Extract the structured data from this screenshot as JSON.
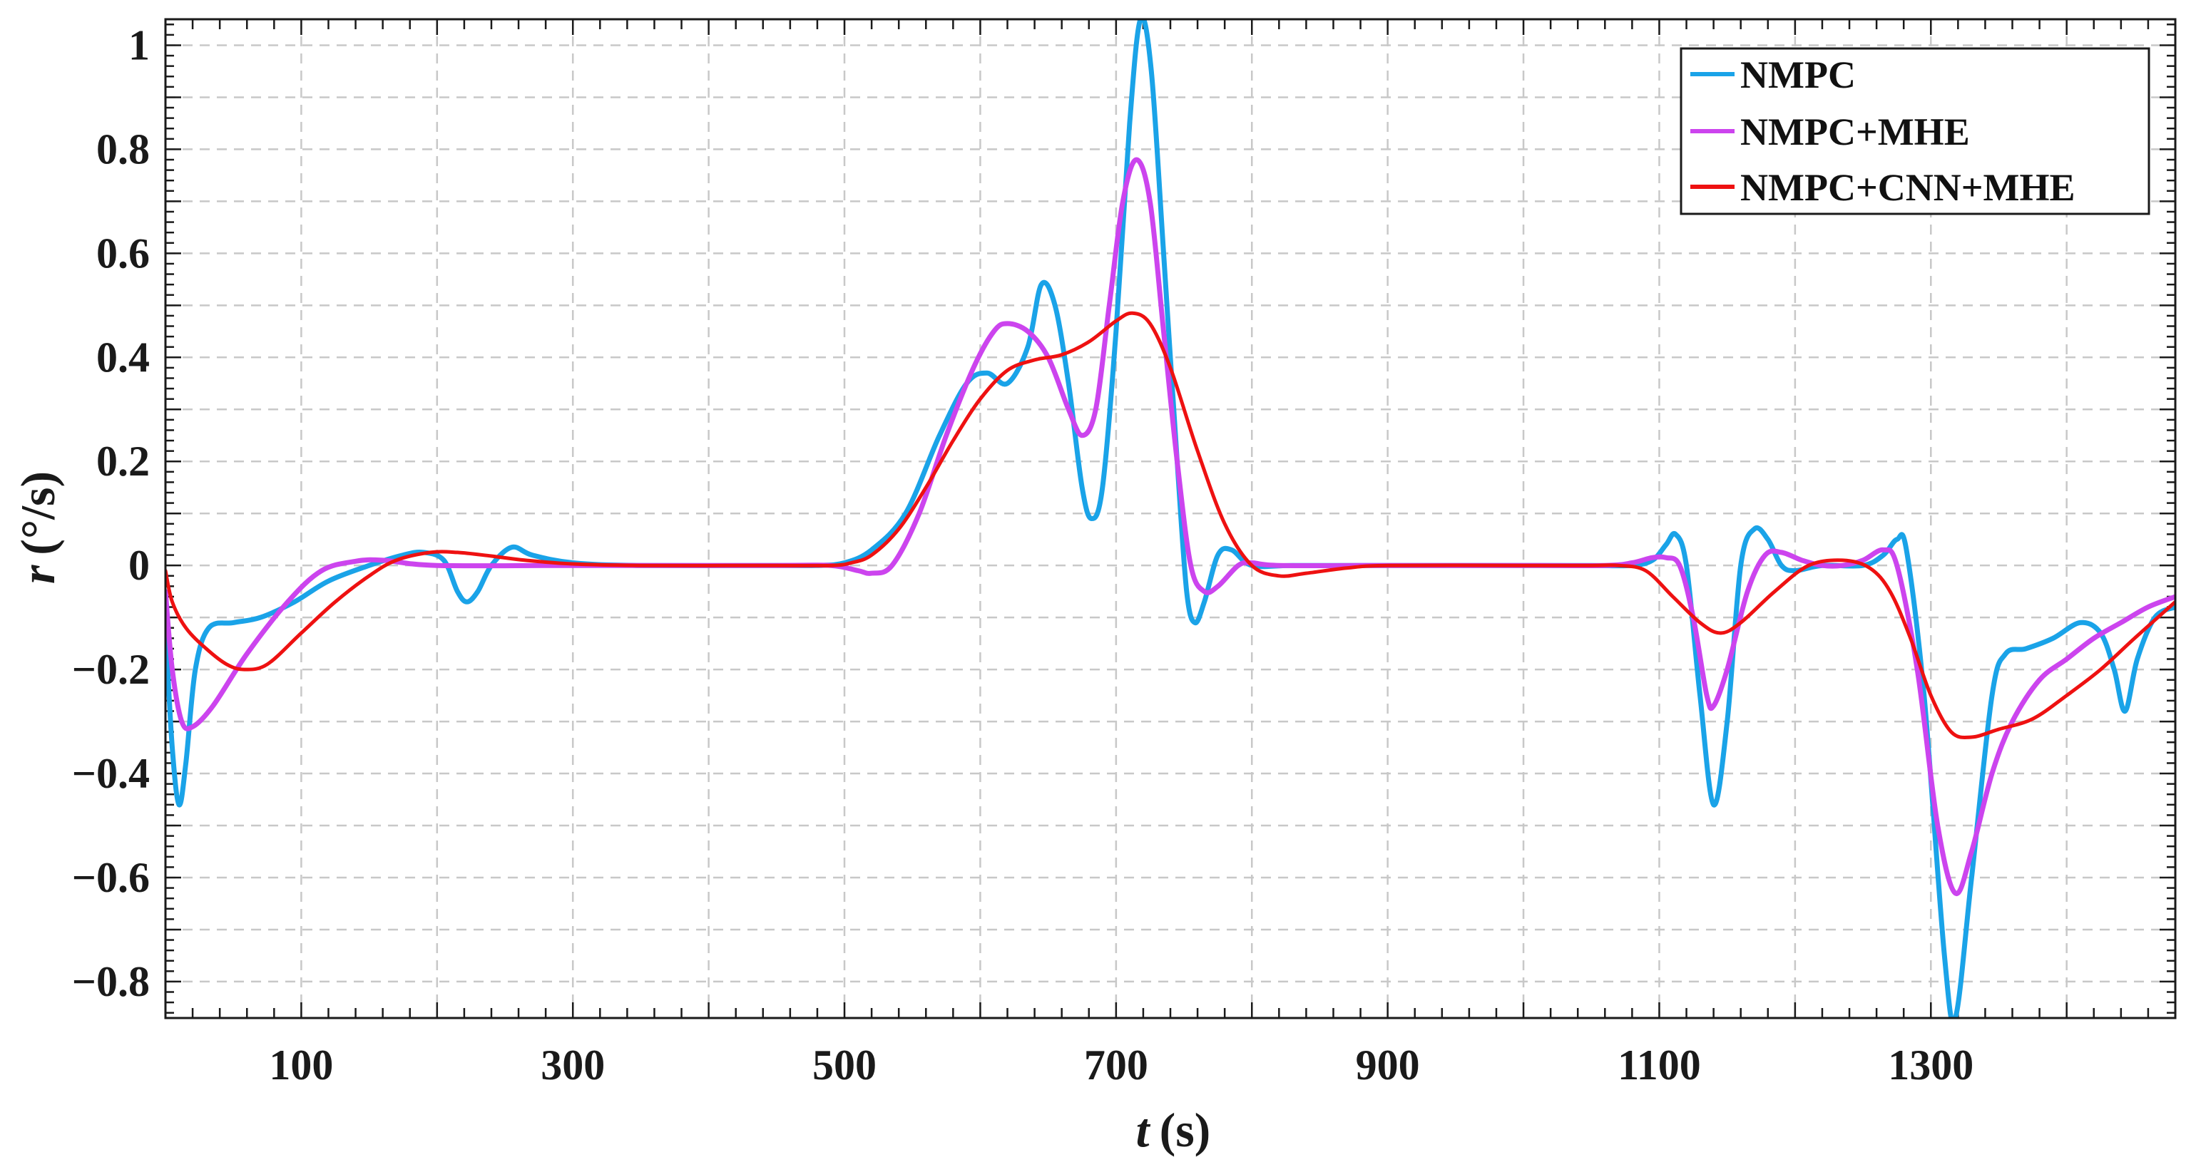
{
  "chart_data": {
    "type": "line",
    "title": "",
    "xlabel": "t",
    "xlabel_unit": "(s)",
    "ylabel": "r",
    "ylabel_unit": "(°/s)",
    "xlim": [
      0,
      1480
    ],
    "ylim": [
      -0.87,
      1.05
    ],
    "xticks": [
      100,
      300,
      500,
      700,
      900,
      1100,
      1300
    ],
    "xtick_labels": [
      "100",
      "300",
      "500",
      "700",
      "900",
      "1100",
      "1300"
    ],
    "yticks": [
      1,
      0.8,
      0.6,
      0.4,
      0.2,
      0,
      -0.2,
      -0.4,
      -0.6,
      -0.8
    ],
    "ytick_labels": [
      "1",
      "0.8",
      "0.6",
      "0.4",
      "0.2",
      "0",
      "−0.2",
      "−0.4",
      "−0.6",
      "−0.8"
    ],
    "grid": true,
    "legend_position": "top-right",
    "series": [
      {
        "name": "NMPC",
        "color": "#1aa3e8",
        "points": [
          [
            0,
            -0.12
          ],
          [
            5,
            -0.35
          ],
          [
            10,
            -0.46
          ],
          [
            15,
            -0.38
          ],
          [
            22,
            -0.2
          ],
          [
            32,
            -0.12
          ],
          [
            50,
            -0.11
          ],
          [
            70,
            -0.1
          ],
          [
            95,
            -0.07
          ],
          [
            120,
            -0.03
          ],
          [
            150,
            0.0
          ],
          [
            175,
            0.02
          ],
          [
            190,
            0.025
          ],
          [
            205,
            0.01
          ],
          [
            215,
            -0.05
          ],
          [
            222,
            -0.07
          ],
          [
            230,
            -0.05
          ],
          [
            240,
            0.0
          ],
          [
            255,
            0.035
          ],
          [
            270,
            0.02
          ],
          [
            300,
            0.005
          ],
          [
            350,
            0.0
          ],
          [
            450,
            0.0
          ],
          [
            480,
            0.0
          ],
          [
            500,
            0.005
          ],
          [
            520,
            0.03
          ],
          [
            545,
            0.1
          ],
          [
            570,
            0.25
          ],
          [
            590,
            0.35
          ],
          [
            605,
            0.37
          ],
          [
            620,
            0.35
          ],
          [
            635,
            0.42
          ],
          [
            645,
            0.54
          ],
          [
            655,
            0.5
          ],
          [
            665,
            0.35
          ],
          [
            675,
            0.15
          ],
          [
            682,
            0.09
          ],
          [
            690,
            0.15
          ],
          [
            700,
            0.45
          ],
          [
            710,
            0.85
          ],
          [
            718,
            1.05
          ],
          [
            726,
            0.95
          ],
          [
            735,
            0.6
          ],
          [
            745,
            0.2
          ],
          [
            752,
            -0.05
          ],
          [
            758,
            -0.11
          ],
          [
            765,
            -0.07
          ],
          [
            775,
            0.02
          ],
          [
            785,
            0.03
          ],
          [
            800,
            0.0
          ],
          [
            830,
            0.0
          ],
          [
            900,
            0.0
          ],
          [
            1000,
            0.0
          ],
          [
            1050,
            0.0
          ],
          [
            1080,
            0.0
          ],
          [
            1095,
            0.01
          ],
          [
            1105,
            0.04
          ],
          [
            1112,
            0.06
          ],
          [
            1120,
            0.0
          ],
          [
            1130,
            -0.25
          ],
          [
            1140,
            -0.46
          ],
          [
            1150,
            -0.3
          ],
          [
            1160,
            0.0
          ],
          [
            1170,
            0.07
          ],
          [
            1180,
            0.05
          ],
          [
            1190,
            0.0
          ],
          [
            1200,
            -0.01
          ],
          [
            1220,
            0.0
          ],
          [
            1250,
            0.0
          ],
          [
            1265,
            0.02
          ],
          [
            1275,
            0.05
          ],
          [
            1282,
            0.03
          ],
          [
            1295,
            -0.25
          ],
          [
            1310,
            -0.75
          ],
          [
            1318,
            -0.87
          ],
          [
            1330,
            -0.6
          ],
          [
            1345,
            -0.25
          ],
          [
            1355,
            -0.17
          ],
          [
            1370,
            -0.16
          ],
          [
            1390,
            -0.14
          ],
          [
            1410,
            -0.11
          ],
          [
            1425,
            -0.13
          ],
          [
            1435,
            -0.2
          ],
          [
            1443,
            -0.28
          ],
          [
            1452,
            -0.18
          ],
          [
            1465,
            -0.1
          ],
          [
            1480,
            -0.08
          ]
        ]
      },
      {
        "name": "NMPC+MHE",
        "color": "#cc44ee",
        "points": [
          [
            0,
            -0.05
          ],
          [
            5,
            -0.2
          ],
          [
            12,
            -0.3
          ],
          [
            20,
            -0.31
          ],
          [
            35,
            -0.27
          ],
          [
            60,
            -0.17
          ],
          [
            90,
            -0.07
          ],
          [
            115,
            -0.01
          ],
          [
            140,
            0.008
          ],
          [
            160,
            0.01
          ],
          [
            200,
            0.0
          ],
          [
            300,
            0.0
          ],
          [
            450,
            0.0
          ],
          [
            490,
            0.0
          ],
          [
            510,
            -0.01
          ],
          [
            520,
            -0.015
          ],
          [
            535,
            0.0
          ],
          [
            555,
            0.1
          ],
          [
            575,
            0.25
          ],
          [
            595,
            0.38
          ],
          [
            610,
            0.45
          ],
          [
            620,
            0.465
          ],
          [
            635,
            0.45
          ],
          [
            650,
            0.4
          ],
          [
            665,
            0.3
          ],
          [
            675,
            0.25
          ],
          [
            685,
            0.3
          ],
          [
            695,
            0.5
          ],
          [
            705,
            0.7
          ],
          [
            715,
            0.78
          ],
          [
            725,
            0.7
          ],
          [
            735,
            0.45
          ],
          [
            745,
            0.2
          ],
          [
            755,
            0.0
          ],
          [
            765,
            -0.05
          ],
          [
            775,
            -0.04
          ],
          [
            790,
            0.0
          ],
          [
            800,
            0.005
          ],
          [
            820,
            0.0
          ],
          [
            900,
            0.0
          ],
          [
            1000,
            0.0
          ],
          [
            1060,
            0.0
          ],
          [
            1080,
            0.005
          ],
          [
            1095,
            0.015
          ],
          [
            1105,
            0.015
          ],
          [
            1115,
            0.0
          ],
          [
            1125,
            -0.1
          ],
          [
            1135,
            -0.25
          ],
          [
            1140,
            -0.27
          ],
          [
            1150,
            -0.2
          ],
          [
            1165,
            -0.05
          ],
          [
            1178,
            0.02
          ],
          [
            1190,
            0.025
          ],
          [
            1205,
            0.01
          ],
          [
            1220,
            0.0
          ],
          [
            1235,
            0.0
          ],
          [
            1250,
            0.01
          ],
          [
            1265,
            0.03
          ],
          [
            1275,
            0.0
          ],
          [
            1290,
            -0.2
          ],
          [
            1305,
            -0.5
          ],
          [
            1318,
            -0.63
          ],
          [
            1330,
            -0.55
          ],
          [
            1345,
            -0.4
          ],
          [
            1360,
            -0.3
          ],
          [
            1380,
            -0.22
          ],
          [
            1400,
            -0.18
          ],
          [
            1420,
            -0.14
          ],
          [
            1440,
            -0.11
          ],
          [
            1460,
            -0.08
          ],
          [
            1480,
            -0.06
          ]
        ]
      },
      {
        "name": "NMPC+CNN+MHE",
        "color": "#ee1111",
        "points": [
          [
            0,
            -0.01
          ],
          [
            5,
            -0.07
          ],
          [
            15,
            -0.12
          ],
          [
            30,
            -0.16
          ],
          [
            45,
            -0.19
          ],
          [
            58,
            -0.2
          ],
          [
            75,
            -0.19
          ],
          [
            100,
            -0.13
          ],
          [
            125,
            -0.07
          ],
          [
            150,
            -0.02
          ],
          [
            170,
            0.01
          ],
          [
            195,
            0.025
          ],
          [
            215,
            0.025
          ],
          [
            240,
            0.018
          ],
          [
            265,
            0.01
          ],
          [
            300,
            0.003
          ],
          [
            350,
            0.0
          ],
          [
            450,
            0.0
          ],
          [
            490,
            0.0
          ],
          [
            505,
            0.005
          ],
          [
            520,
            0.02
          ],
          [
            540,
            0.07
          ],
          [
            560,
            0.15
          ],
          [
            580,
            0.24
          ],
          [
            600,
            0.32
          ],
          [
            620,
            0.375
          ],
          [
            640,
            0.395
          ],
          [
            660,
            0.405
          ],
          [
            680,
            0.43
          ],
          [
            700,
            0.47
          ],
          [
            712,
            0.485
          ],
          [
            725,
            0.465
          ],
          [
            740,
            0.38
          ],
          [
            760,
            0.22
          ],
          [
            780,
            0.08
          ],
          [
            800,
            0.0
          ],
          [
            820,
            -0.02
          ],
          [
            840,
            -0.015
          ],
          [
            870,
            -0.005
          ],
          [
            900,
            0.0
          ],
          [
            1000,
            0.0
          ],
          [
            1050,
            0.0
          ],
          [
            1070,
            0.0
          ],
          [
            1090,
            -0.01
          ],
          [
            1110,
            -0.06
          ],
          [
            1130,
            -0.11
          ],
          [
            1145,
            -0.13
          ],
          [
            1160,
            -0.11
          ],
          [
            1185,
            -0.05
          ],
          [
            1210,
            0.0
          ],
          [
            1235,
            0.01
          ],
          [
            1255,
            -0.005
          ],
          [
            1270,
            -0.05
          ],
          [
            1285,
            -0.14
          ],
          [
            1300,
            -0.25
          ],
          [
            1315,
            -0.32
          ],
          [
            1330,
            -0.33
          ],
          [
            1350,
            -0.315
          ],
          [
            1375,
            -0.295
          ],
          [
            1400,
            -0.25
          ],
          [
            1425,
            -0.2
          ],
          [
            1450,
            -0.14
          ],
          [
            1480,
            -0.07
          ]
        ]
      }
    ]
  }
}
